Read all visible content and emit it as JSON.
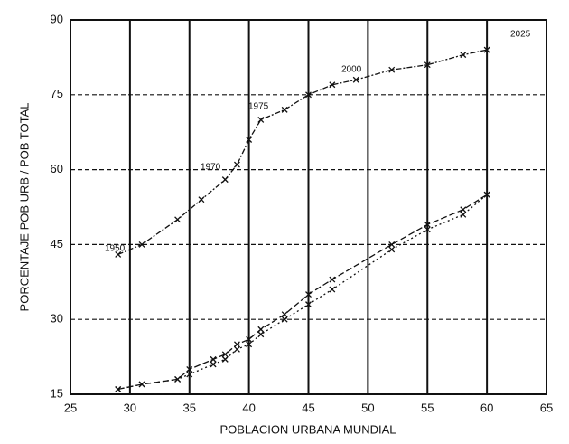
{
  "chart_data": {
    "type": "line",
    "xlabel": "POBLACION URBANA MUNDIAL",
    "ylabel": "PORCENTAJE POB URB / POB TOTAL",
    "xlim": [
      25,
      65
    ],
    "xticks": [
      25,
      30,
      35,
      40,
      45,
      50,
      55,
      60,
      65
    ],
    "ylim": [
      15,
      90
    ],
    "yticks": [
      15,
      30,
      45,
      60,
      75,
      90
    ],
    "grid": true,
    "annotations": [
      "1950",
      "1970",
      "1975",
      "2000",
      "2025"
    ],
    "series": [
      {
        "color": "#111111",
        "x": [
          29,
          31,
          34,
          36,
          38,
          39,
          40,
          41,
          43,
          45,
          47,
          49,
          52,
          55,
          58,
          60
        ],
        "values": [
          43,
          45,
          50,
          54,
          58,
          61,
          66,
          70,
          72,
          75,
          77,
          78,
          80,
          81,
          83,
          84
        ]
      },
      {
        "color": "#111111",
        "x": [
          29,
          31,
          34,
          35,
          37,
          38,
          39,
          40,
          41,
          43,
          45,
          47,
          52,
          55,
          58,
          60
        ],
        "values": [
          16,
          17,
          18,
          20,
          22,
          23,
          25,
          26,
          28,
          31,
          35,
          38,
          45,
          49,
          52,
          55
        ]
      },
      {
        "color": "#111111",
        "x": [
          29,
          31,
          34,
          35,
          37,
          38,
          39,
          40,
          41,
          43,
          45,
          47,
          52,
          55,
          58,
          60
        ],
        "values": [
          16,
          17,
          18,
          19,
          21,
          22,
          24,
          25,
          27,
          30,
          33,
          36,
          44,
          48,
          51,
          55
        ]
      }
    ]
  }
}
